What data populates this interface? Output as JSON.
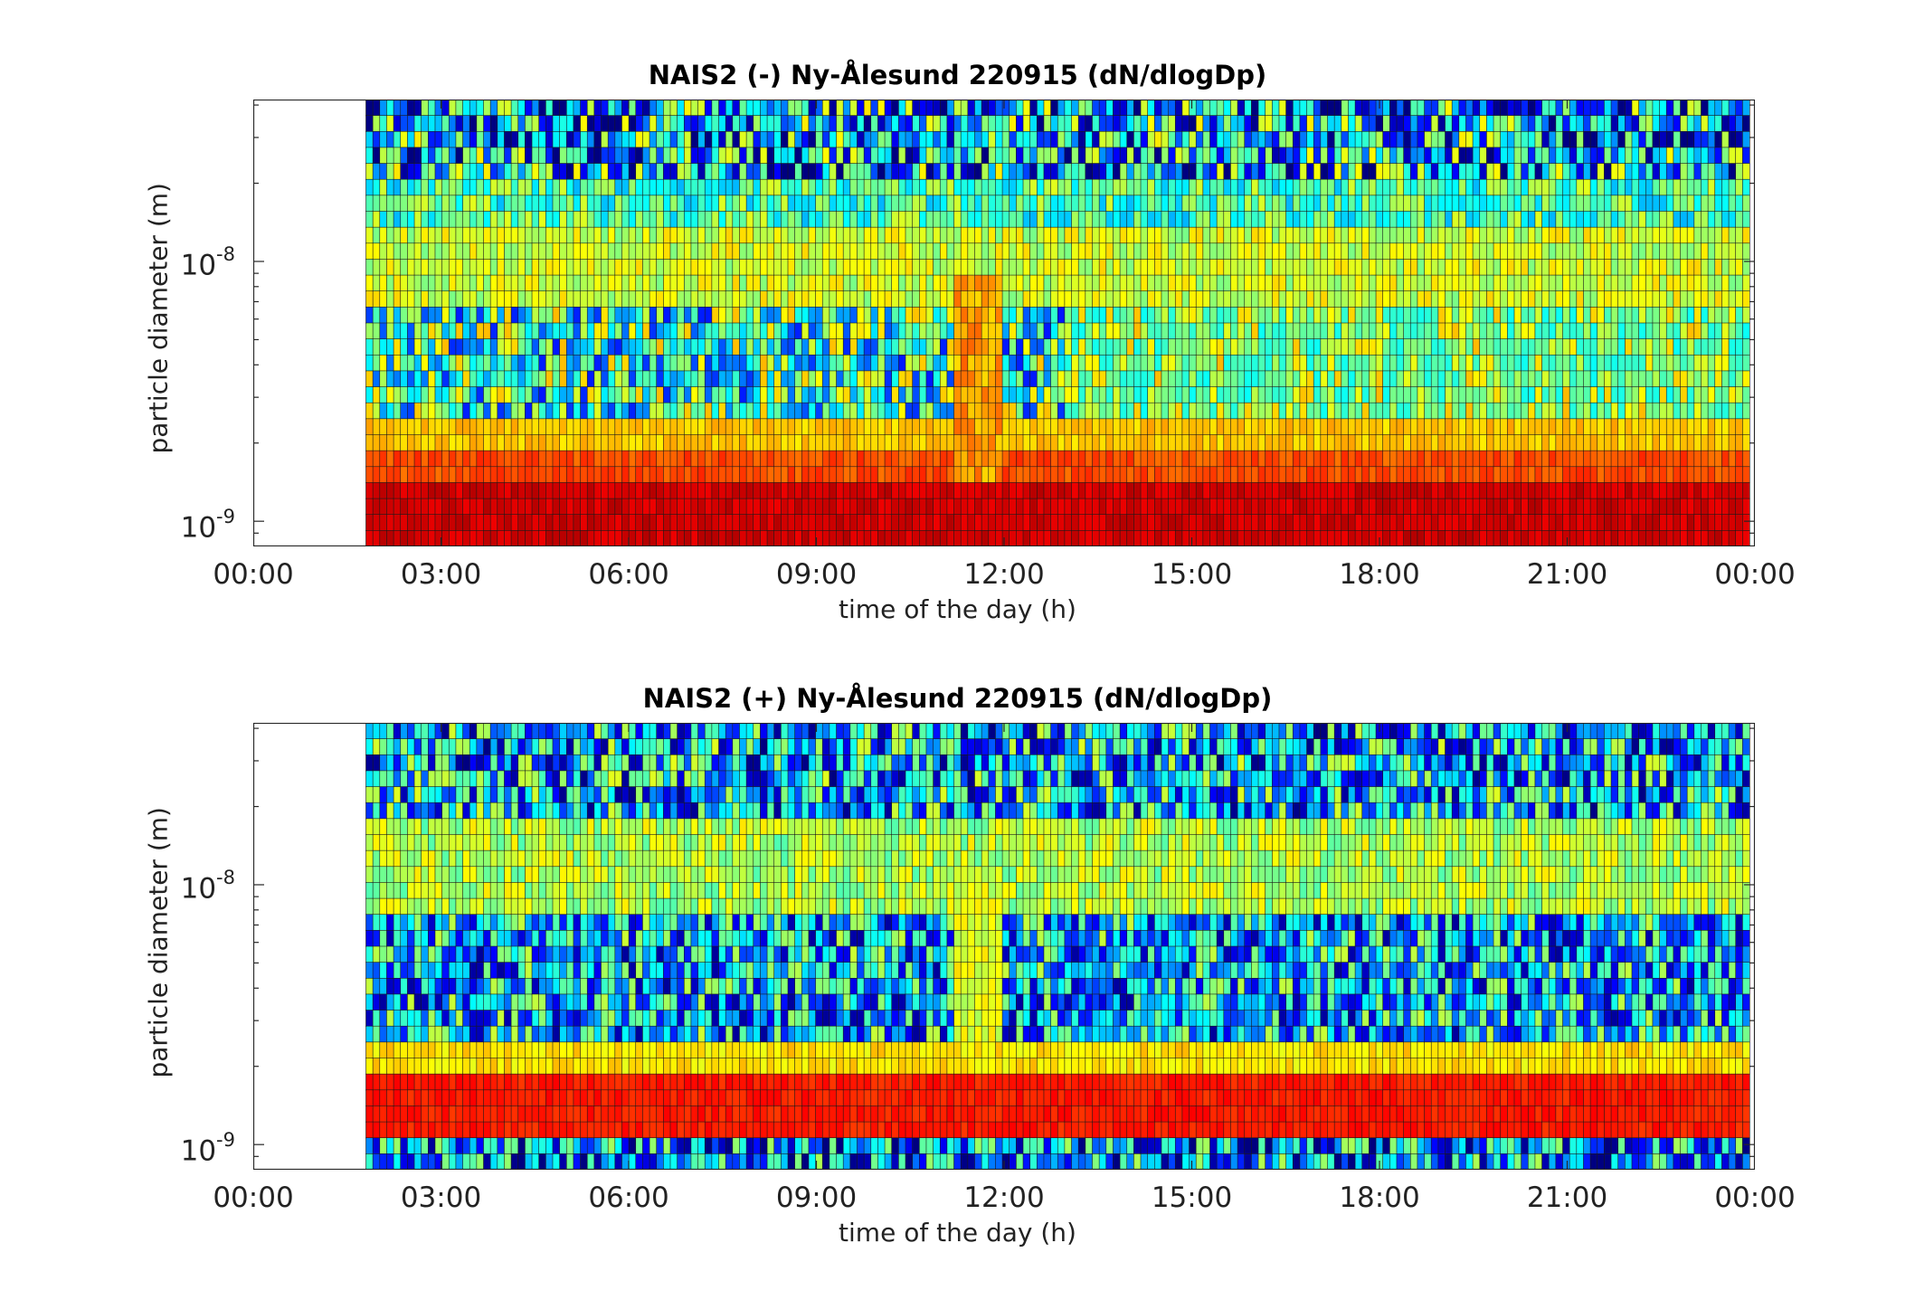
{
  "chart_data": [
    {
      "type": "heatmap",
      "title": "NAIS2 (-) Ny-Ålesund 220915 (dN/dlogDp)",
      "xlabel": "time of the day (h)",
      "ylabel": "particle diameter (m)",
      "x_ticks": [
        "00:00",
        "03:00",
        "06:00",
        "09:00",
        "12:00",
        "15:00",
        "18:00",
        "21:00",
        "00:00"
      ],
      "xlim_hours": [
        0,
        24
      ],
      "y_scale": "log",
      "ylim_m": [
        8e-10,
        4.2e-08
      ],
      "y_ticks": [
        {
          "base": "10",
          "exp": "-8"
        },
        {
          "base": "10",
          "exp": "-9"
        }
      ],
      "data_start_hour": 1.8,
      "colormap": "jet",
      "grid": false
    },
    {
      "type": "heatmap",
      "title": "NAIS2 (+) Ny-Ålesund 220915 (dN/dlogDp)",
      "xlabel": "time of the day (h)",
      "ylabel": "particle diameter (m)",
      "x_ticks": [
        "00:00",
        "03:00",
        "06:00",
        "09:00",
        "12:00",
        "15:00",
        "18:00",
        "21:00",
        "00:00"
      ],
      "xlim_hours": [
        0,
        24
      ],
      "y_scale": "log",
      "ylim_m": [
        8e-10,
        4.2e-08
      ],
      "y_ticks": [
        {
          "base": "10",
          "exp": "-8"
        },
        {
          "base": "10",
          "exp": "-9"
        }
      ],
      "data_start_hour": 1.8,
      "colormap": "jet",
      "grid": false
    }
  ]
}
